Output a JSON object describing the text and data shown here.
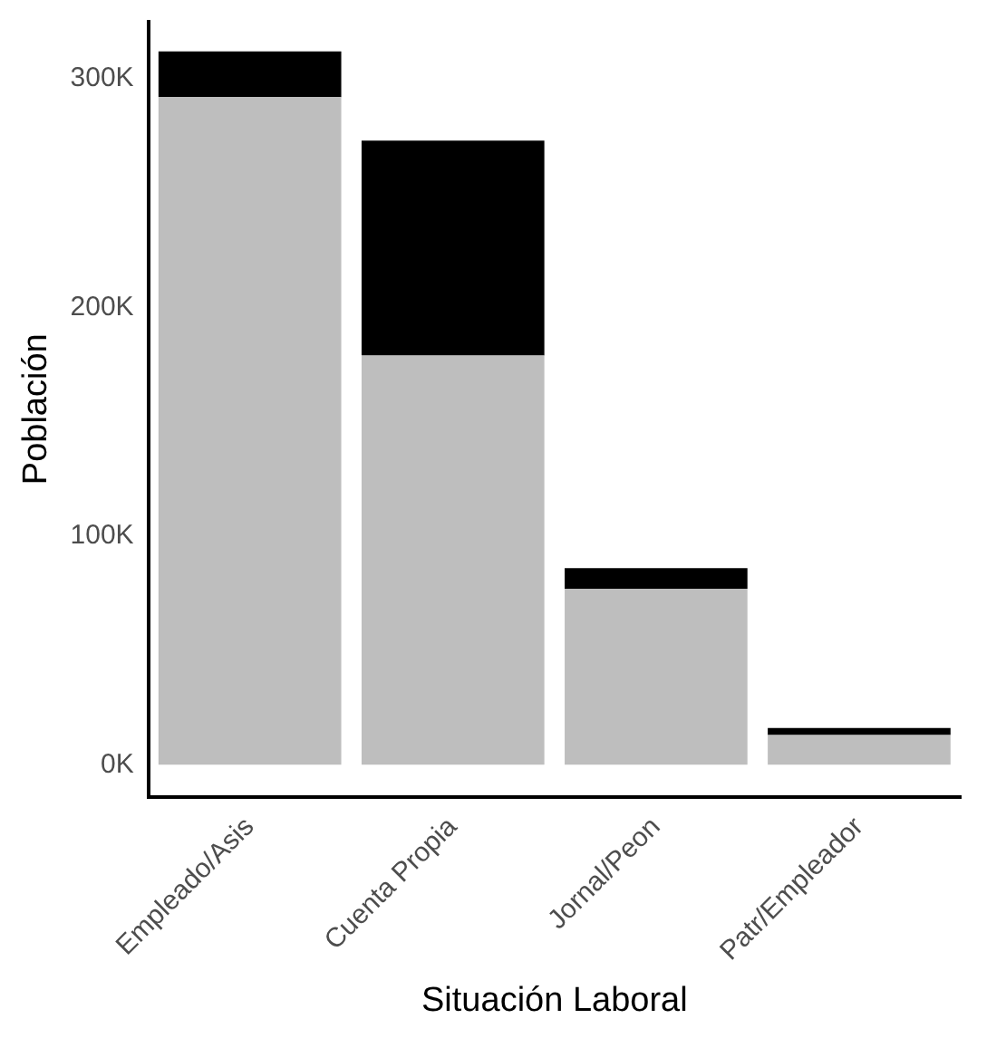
{
  "chart_data": {
    "type": "bar",
    "stacked": true,
    "xlabel": "Situación Laboral",
    "ylabel": "Población",
    "categories": [
      "Empleado/Asis",
      "Cuenta Propia",
      "Jornal/Peon",
      "Patr/Empleador"
    ],
    "series": [
      {
        "color": "#bebebe",
        "values": [
          292,
          179,
          77,
          13
        ]
      },
      {
        "color": "#000000",
        "values": [
          20,
          94,
          9,
          3
        ]
      }
    ],
    "ylim": [
      -14,
      325
    ],
    "yticks": [
      {
        "value": 0,
        "label": "0K"
      },
      {
        "value": 100,
        "label": "100K"
      },
      {
        "value": 200,
        "label": "200K"
      },
      {
        "value": 300,
        "label": "300K"
      }
    ],
    "grid": false,
    "legend": false
  }
}
